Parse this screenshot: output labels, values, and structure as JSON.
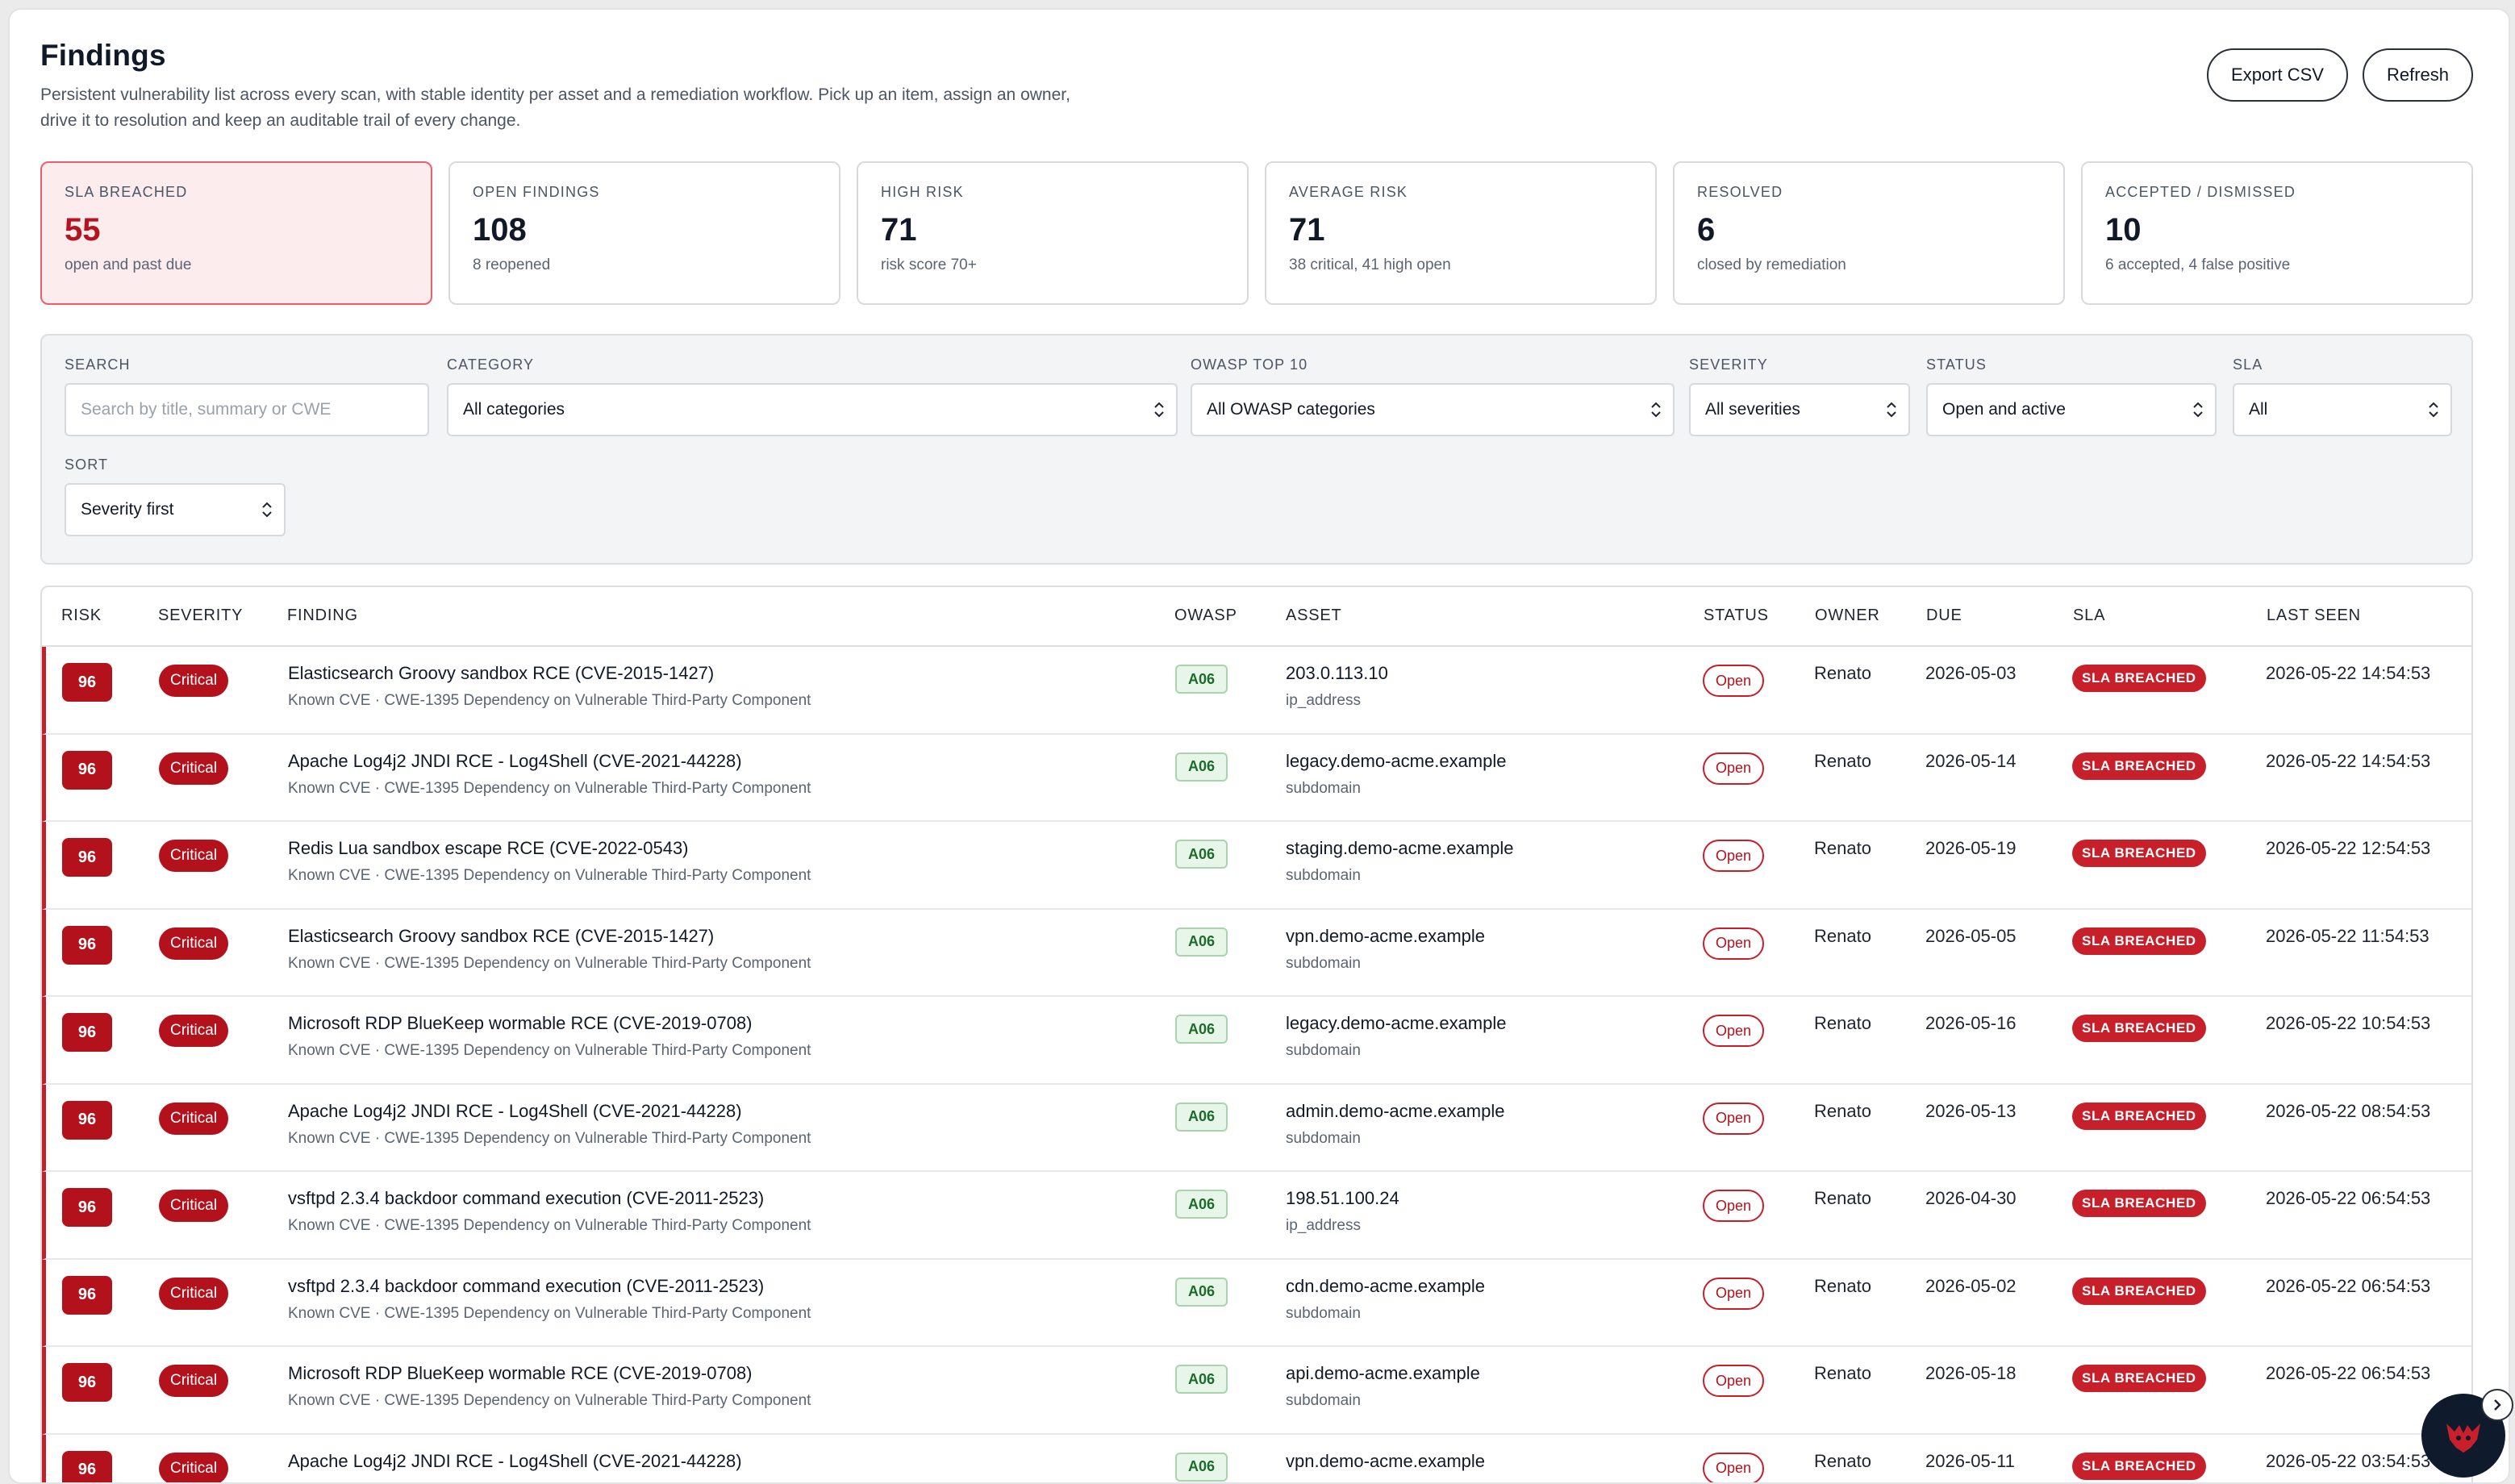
{
  "page": {
    "title": "Findings",
    "subtitle": "Persistent vulnerability list across every scan, with stable identity per asset and a remediation workflow. Pick up an item, assign an owner, drive it to resolution and keep an auditable trail of every change.",
    "actions": {
      "export_label": "Export CSV",
      "refresh_label": "Refresh"
    }
  },
  "stats": [
    {
      "label": "SLA BREACHED",
      "value": "55",
      "note": "open and past due"
    },
    {
      "label": "OPEN FINDINGS",
      "value": "108",
      "note": "8 reopened"
    },
    {
      "label": "HIGH RISK",
      "value": "71",
      "note": "risk score 70+"
    },
    {
      "label": "AVERAGE RISK",
      "value": "71",
      "note": "38 critical, 41 high open"
    },
    {
      "label": "RESOLVED",
      "value": "6",
      "note": "closed by remediation"
    },
    {
      "label": "ACCEPTED / DISMISSED",
      "value": "10",
      "note": "6 accepted, 4 false positive"
    }
  ],
  "filters": {
    "search": {
      "label": "SEARCH",
      "placeholder": "Search by title, summary or CWE"
    },
    "category": {
      "label": "CATEGORY",
      "value": "All categories"
    },
    "owasp": {
      "label": "OWASP TOP 10",
      "value": "All OWASP categories"
    },
    "severity": {
      "label": "SEVERITY",
      "value": "All severities"
    },
    "status": {
      "label": "STATUS",
      "value": "Open and active"
    },
    "sla": {
      "label": "SLA",
      "value": "All"
    },
    "sort": {
      "label": "SORT",
      "value": "Severity first"
    }
  },
  "table": {
    "columns": [
      "RISK",
      "SEVERITY",
      "FINDING",
      "OWASP",
      "ASSET",
      "STATUS",
      "OWNER",
      "DUE",
      "SLA",
      "LAST SEEN"
    ],
    "rows": [
      {
        "risk": "96",
        "severity": "Critical",
        "title": "Elasticsearch Groovy sandbox RCE (CVE-2015-1427)",
        "summary": "Known CVE · CWE-1395 Dependency on Vulnerable Third-Party Component",
        "owasp": "A06",
        "asset": "203.0.113.10",
        "asset_type": "ip_address",
        "status": "Open",
        "owner": "Renato",
        "due": "2026-05-03",
        "sla": "SLA BREACHED",
        "last_seen": "2026-05-22 14:54:53"
      },
      {
        "risk": "96",
        "severity": "Critical",
        "title": "Apache Log4j2 JNDI RCE - Log4Shell (CVE-2021-44228)",
        "summary": "Known CVE · CWE-1395 Dependency on Vulnerable Third-Party Component",
        "owasp": "A06",
        "asset": "legacy.demo-acme.example",
        "asset_type": "subdomain",
        "status": "Open",
        "owner": "Renato",
        "due": "2026-05-14",
        "sla": "SLA BREACHED",
        "last_seen": "2026-05-22 14:54:53"
      },
      {
        "risk": "96",
        "severity": "Critical",
        "title": "Redis Lua sandbox escape RCE (CVE-2022-0543)",
        "summary": "Known CVE · CWE-1395 Dependency on Vulnerable Third-Party Component",
        "owasp": "A06",
        "asset": "staging.demo-acme.example",
        "asset_type": "subdomain",
        "status": "Open",
        "owner": "Renato",
        "due": "2026-05-19",
        "sla": "SLA BREACHED",
        "last_seen": "2026-05-22 12:54:53"
      },
      {
        "risk": "96",
        "severity": "Critical",
        "title": "Elasticsearch Groovy sandbox RCE (CVE-2015-1427)",
        "summary": "Known CVE · CWE-1395 Dependency on Vulnerable Third-Party Component",
        "owasp": "A06",
        "asset": "vpn.demo-acme.example",
        "asset_type": "subdomain",
        "status": "Open",
        "owner": "Renato",
        "due": "2026-05-05",
        "sla": "SLA BREACHED",
        "last_seen": "2026-05-22 11:54:53"
      },
      {
        "risk": "96",
        "severity": "Critical",
        "title": "Microsoft RDP BlueKeep wormable RCE (CVE-2019-0708)",
        "summary": "Known CVE · CWE-1395 Dependency on Vulnerable Third-Party Component",
        "owasp": "A06",
        "asset": "legacy.demo-acme.example",
        "asset_type": "subdomain",
        "status": "Open",
        "owner": "Renato",
        "due": "2026-05-16",
        "sla": "SLA BREACHED",
        "last_seen": "2026-05-22 10:54:53"
      },
      {
        "risk": "96",
        "severity": "Critical",
        "title": "Apache Log4j2 JNDI RCE - Log4Shell (CVE-2021-44228)",
        "summary": "Known CVE · CWE-1395 Dependency on Vulnerable Third-Party Component",
        "owasp": "A06",
        "asset": "admin.demo-acme.example",
        "asset_type": "subdomain",
        "status": "Open",
        "owner": "Renato",
        "due": "2026-05-13",
        "sla": "SLA BREACHED",
        "last_seen": "2026-05-22 08:54:53"
      },
      {
        "risk": "96",
        "severity": "Critical",
        "title": "vsftpd 2.3.4 backdoor command execution (CVE-2011-2523)",
        "summary": "Known CVE · CWE-1395 Dependency on Vulnerable Third-Party Component",
        "owasp": "A06",
        "asset": "198.51.100.24",
        "asset_type": "ip_address",
        "status": "Open",
        "owner": "Renato",
        "due": "2026-04-30",
        "sla": "SLA BREACHED",
        "last_seen": "2026-05-22 06:54:53"
      },
      {
        "risk": "96",
        "severity": "Critical",
        "title": "vsftpd 2.3.4 backdoor command execution (CVE-2011-2523)",
        "summary": "Known CVE · CWE-1395 Dependency on Vulnerable Third-Party Component",
        "owasp": "A06",
        "asset": "cdn.demo-acme.example",
        "asset_type": "subdomain",
        "status": "Open",
        "owner": "Renato",
        "due": "2026-05-02",
        "sla": "SLA BREACHED",
        "last_seen": "2026-05-22 06:54:53"
      },
      {
        "risk": "96",
        "severity": "Critical",
        "title": "Microsoft RDP BlueKeep wormable RCE (CVE-2019-0708)",
        "summary": "Known CVE · CWE-1395 Dependency on Vulnerable Third-Party Component",
        "owasp": "A06",
        "asset": "api.demo-acme.example",
        "asset_type": "subdomain",
        "status": "Open",
        "owner": "Renato",
        "due": "2026-05-18",
        "sla": "SLA BREACHED",
        "last_seen": "2026-05-22 06:54:53"
      },
      {
        "risk": "96",
        "severity": "Critical",
        "title": "Apache Log4j2 JNDI RCE - Log4Shell (CVE-2021-44228)",
        "summary": "",
        "owasp": "A06",
        "asset": "vpn.demo-acme.example",
        "asset_type": "",
        "status": "Open",
        "owner": "Renato",
        "due": "2026-05-11",
        "sla": "SLA BREACHED",
        "last_seen": "2026-05-22 03:54:53"
      }
    ]
  },
  "assistant": {
    "launcher_icon": "mascot-logo-icon",
    "toggle_icon": "chevron-right-icon"
  }
}
